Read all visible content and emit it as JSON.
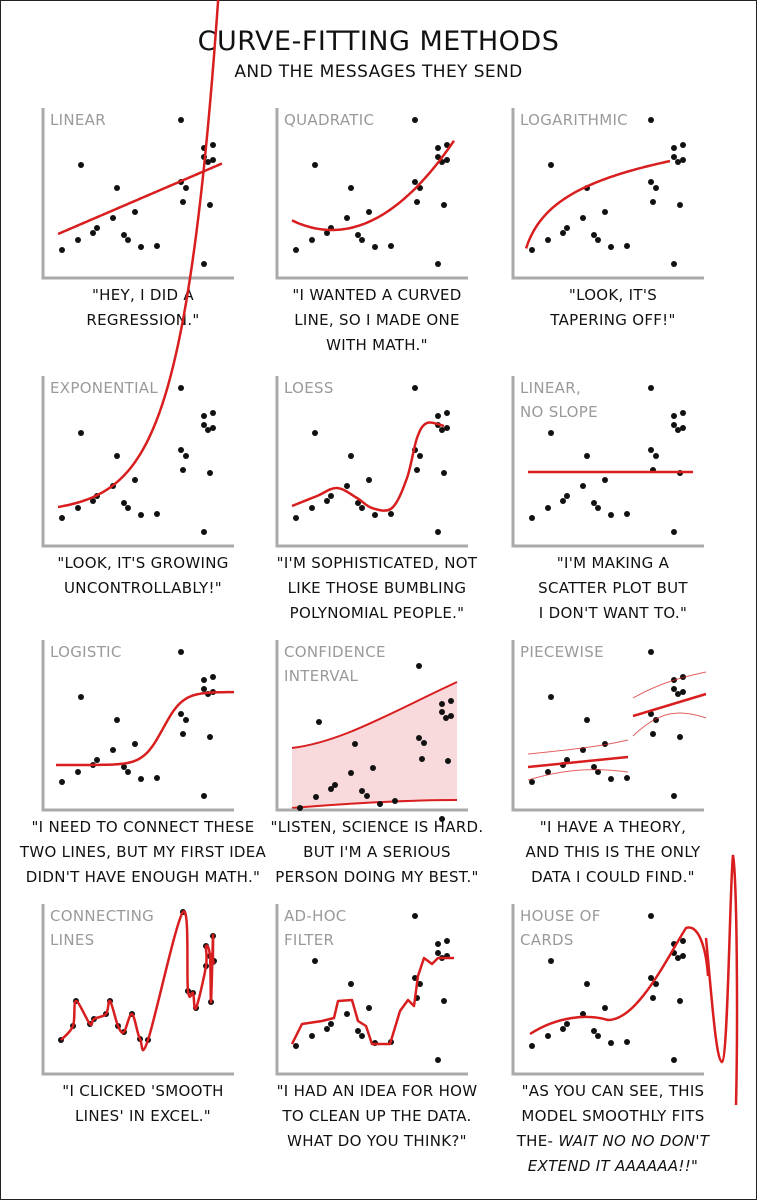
{
  "title": "CURVE-FITTING METHODS",
  "subtitle": "AND THE MESSAGES THEY SEND",
  "colors": {
    "curve": "#d81e1e",
    "band": "#f8d9dc",
    "axis": "#aaaaaa",
    "label": "#9a9a9a",
    "dot": "#111111"
  },
  "panels": [
    {
      "label_lines": [
        "LINEAR"
      ],
      "caption_lines": [
        "\"HEY, I DID A",
        "REGRESSION.\""
      ]
    },
    {
      "label_lines": [
        "QUADRATIC"
      ],
      "caption_lines": [
        "\"I WANTED A CURVED",
        "LINE, SO I MADE ONE",
        "WITH MATH.\""
      ]
    },
    {
      "label_lines": [
        "LOGARITHMIC"
      ],
      "caption_lines": [
        "\"LOOK, IT'S",
        "TAPERING OFF!\""
      ]
    },
    {
      "label_lines": [
        "EXPONENTIAL"
      ],
      "caption_lines": [
        "\"LOOK, IT'S GROWING",
        "UNCONTROLLABLY!\""
      ]
    },
    {
      "label_lines": [
        "LOESS"
      ],
      "caption_lines": [
        "\"I'M SOPHISTICATED, NOT",
        "LIKE THOSE BUMBLING",
        "POLYNOMIAL PEOPLE.\""
      ]
    },
    {
      "label_lines": [
        "LINEAR,",
        "NO SLOPE"
      ],
      "caption_lines": [
        "\"I'M MAKING A",
        "SCATTER PLOT BUT",
        "I DON'T WANT TO.\""
      ]
    },
    {
      "label_lines": [
        "LOGISTIC"
      ],
      "caption_lines": [
        "\"I NEED TO CONNECT THESE",
        "TWO LINES, BUT MY FIRST IDEA",
        "DIDN'T HAVE ENOUGH MATH.\""
      ]
    },
    {
      "label_lines": [
        "CONFIDENCE",
        "INTERVAL"
      ],
      "caption_lines": [
        "\"LISTEN, SCIENCE IS HARD.",
        "BUT I'M A SERIOUS",
        "PERSON DOING MY BEST.\""
      ]
    },
    {
      "label_lines": [
        "PIECEWISE"
      ],
      "caption_lines": [
        "\"I HAVE A THEORY,",
        "AND THIS IS THE ONLY",
        "DATA I COULD FIND.\""
      ]
    },
    {
      "label_lines": [
        "CONNECTING",
        "LINES"
      ],
      "caption_lines": [
        "\"I CLICKED 'SMOOTH",
        "LINES' IN EXCEL.\""
      ]
    },
    {
      "label_lines": [
        "AD-HOC",
        "FILTER"
      ],
      "caption_lines": [
        "\"I HAD AN IDEA FOR HOW",
        "TO CLEAN UP THE DATA.",
        "WHAT DO YOU THINK?\""
      ]
    },
    {
      "label_lines": [
        "HOUSE OF",
        "CARDS"
      ],
      "caption_lines": [
        "\"AS YOU CAN SEE, THIS",
        "MODEL SMOOTHLY FITS",
        "THE- WAIT NO NO DON'T",
        "EXTEND IT AAAAAA!!\""
      ]
    }
  ],
  "caption_italic": {
    "panel": 11,
    "line": 2,
    "plain": "THE- ",
    "italic": "WAIT NO NO DON'T"
  },
  "caption_italic_last": {
    "panel": 11,
    "line": 3,
    "italic": "EXTEND IT AAAAAA!!",
    "plain": "\""
  }
}
